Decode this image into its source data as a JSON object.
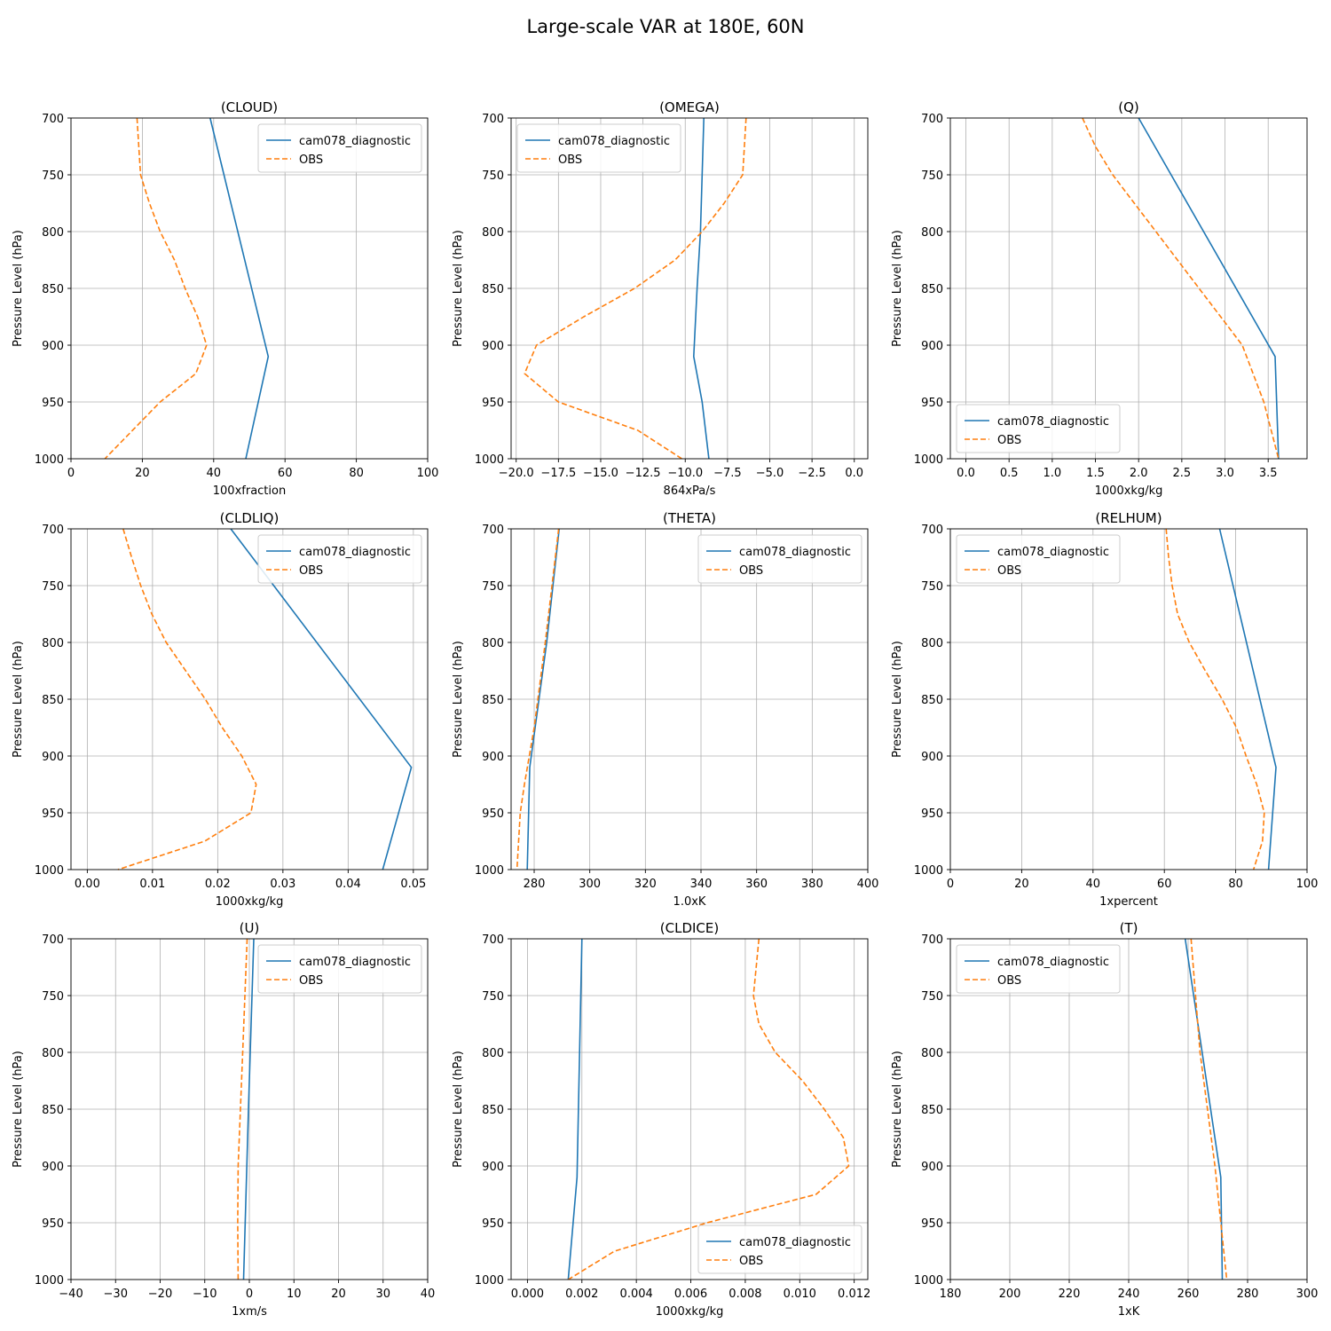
{
  "figure": {
    "title": "Large-scale VAR at 180E, 60N",
    "ylabel": "Pressure Level (hPa)",
    "legend_labels": [
      "cam078_diagnostic",
      "OBS"
    ],
    "series_colors": {
      "cam078_diagnostic": "#1f77b4",
      "OBS": "#ff7f0e"
    }
  },
  "chart_data": [
    {
      "type": "line",
      "title": "(CLOUD)",
      "xlabel": "100xfraction",
      "ylabel": "Pressure Level (hPa)",
      "xlim": [
        0,
        100
      ],
      "ylim": [
        1000,
        700
      ],
      "grid": true,
      "legend": "top-right",
      "xticks": [
        0,
        20,
        40,
        60,
        80,
        100
      ],
      "xtick_labels": [
        "0",
        "20",
        "40",
        "60",
        "80",
        "100"
      ],
      "yticks": [
        700,
        750,
        800,
        850,
        900,
        950,
        1000
      ],
      "ytick_labels": [
        "700",
        "750",
        "800",
        "850",
        "900",
        "950",
        "1000"
      ],
      "series": [
        {
          "name": "cam078_diagnostic",
          "style": "solid",
          "x": [
            39,
            55.3,
            49
          ],
          "y": [
            700,
            910,
            1000
          ]
        },
        {
          "name": "OBS",
          "style": "dashed",
          "x": [
            18.5,
            19,
            19.5,
            22,
            25,
            29,
            32,
            35.5,
            38,
            35,
            25,
            9.5
          ],
          "y": [
            700,
            725,
            750,
            775,
            800,
            825,
            850,
            875,
            900,
            925,
            950,
            1000
          ]
        }
      ]
    },
    {
      "type": "line",
      "title": "(OMEGA)",
      "xlabel": "864xPa/s",
      "ylabel": "Pressure Level (hPa)",
      "xlim": [
        -20.3,
        0.8
      ],
      "ylim": [
        1000,
        700
      ],
      "grid": true,
      "legend": "top-left",
      "xticks": [
        -20,
        -17.5,
        -15,
        -12.5,
        -10,
        -7.5,
        -5,
        -2.5,
        0
      ],
      "xtick_labels": [
        "−20.0",
        "−17.5",
        "−15.0",
        "−12.5",
        "−10.0",
        "−7.5",
        "−5.0",
        "−2.5",
        "0.0"
      ],
      "yticks": [
        700,
        750,
        800,
        850,
        900,
        950,
        1000
      ],
      "ytick_labels": [
        "700",
        "750",
        "800",
        "850",
        "900",
        "950",
        "1000"
      ],
      "series": [
        {
          "name": "cam078_diagnostic",
          "style": "solid",
          "x": [
            -8.9,
            -9.1,
            -9.3,
            -9.5,
            -9.0,
            -8.6
          ],
          "y": [
            700,
            800,
            850,
            910,
            950,
            1000
          ]
        },
        {
          "name": "OBS",
          "style": "dashed",
          "x": [
            -6.4,
            -6.5,
            -6.6,
            -7.7,
            -9.0,
            -10.6,
            -13.0,
            -16.0,
            -18.8,
            -19.5,
            -17.5,
            -12.8,
            -10.2
          ],
          "y": [
            700,
            725,
            750,
            775,
            800,
            825,
            850,
            875,
            900,
            925,
            950,
            975,
            1000
          ]
        }
      ]
    },
    {
      "type": "line",
      "title": "(Q)",
      "xlabel": "1000xkg/kg",
      "ylabel": "Pressure Level (hPa)",
      "xlim": [
        -0.18,
        3.95
      ],
      "ylim": [
        1000,
        700
      ],
      "grid": true,
      "legend": "bottom-left",
      "xticks": [
        0,
        0.5,
        1,
        1.5,
        2,
        2.5,
        3,
        3.5
      ],
      "xtick_labels": [
        "0.0",
        "0.5",
        "1.0",
        "1.5",
        "2.0",
        "2.5",
        "3.0",
        "3.5"
      ],
      "yticks": [
        700,
        750,
        800,
        850,
        900,
        950,
        1000
      ],
      "ytick_labels": [
        "700",
        "750",
        "800",
        "850",
        "900",
        "950",
        "1000"
      ],
      "series": [
        {
          "name": "cam078_diagnostic",
          "style": "solid",
          "x": [
            2.0,
            3.58,
            3.62
          ],
          "y": [
            700,
            910,
            1000
          ]
        },
        {
          "name": "OBS",
          "style": "dashed",
          "x": [
            1.35,
            1.5,
            1.7,
            1.95,
            2.2,
            2.45,
            2.7,
            2.95,
            3.2,
            3.45,
            3.62
          ],
          "y": [
            700,
            725,
            750,
            775,
            800,
            825,
            850,
            875,
            900,
            950,
            1000
          ]
        }
      ]
    },
    {
      "type": "line",
      "title": "(CLDLIQ)",
      "xlabel": "1000xkg/kg",
      "ylabel": "Pressure Level (hPa)",
      "xlim": [
        -0.0025,
        0.0522
      ],
      "ylim": [
        1000,
        700
      ],
      "grid": true,
      "legend": "top-right",
      "xticks": [
        0,
        0.01,
        0.02,
        0.03,
        0.04,
        0.05
      ],
      "xtick_labels": [
        "0.00",
        "0.01",
        "0.02",
        "0.03",
        "0.04",
        "0.05"
      ],
      "yticks": [
        700,
        750,
        800,
        850,
        900,
        950,
        1000
      ],
      "ytick_labels": [
        "700",
        "750",
        "800",
        "850",
        "900",
        "950",
        "1000"
      ],
      "series": [
        {
          "name": "cam078_diagnostic",
          "style": "solid",
          "x": [
            0.022,
            0.0497,
            0.0453
          ],
          "y": [
            700,
            910,
            1000
          ]
        },
        {
          "name": "OBS",
          "style": "dashed",
          "x": [
            0.0055,
            0.0068,
            0.0082,
            0.0099,
            0.0121,
            0.0151,
            0.0181,
            0.0207,
            0.0237,
            0.0259,
            0.0251,
            0.018,
            0.0047
          ],
          "y": [
            700,
            725,
            750,
            775,
            800,
            825,
            850,
            875,
            900,
            925,
            950,
            975,
            1000
          ]
        }
      ]
    },
    {
      "type": "line",
      "title": "(THETA)",
      "xlabel": "1.0xK",
      "ylabel": "Pressure Level (hPa)",
      "xlim": [
        271.7,
        400
      ],
      "ylim": [
        1000,
        700
      ],
      "grid": true,
      "legend": "top-right",
      "xticks": [
        280,
        300,
        320,
        340,
        360,
        380,
        400
      ],
      "xtick_labels": [
        "280",
        "300",
        "320",
        "340",
        "360",
        "380",
        "400"
      ],
      "yticks": [
        700,
        750,
        800,
        850,
        900,
        950,
        1000
      ],
      "ytick_labels": [
        "700",
        "750",
        "800",
        "850",
        "900",
        "950",
        "1000"
      ],
      "series": [
        {
          "name": "cam078_diagnostic",
          "style": "solid",
          "x": [
            289,
            284.5,
            278.4,
            277.5
          ],
          "y": [
            700,
            800,
            910,
            1000
          ]
        },
        {
          "name": "OBS",
          "style": "dashed",
          "x": [
            288.8,
            284,
            280,
            276.5,
            275,
            273.8
          ],
          "y": [
            700,
            800,
            875,
            925,
            950,
            1000
          ]
        }
      ]
    },
    {
      "type": "line",
      "title": "(RELHUM)",
      "xlabel": "1xpercent",
      "ylabel": "Pressure Level (hPa)",
      "xlim": [
        0,
        100
      ],
      "ylim": [
        1000,
        700
      ],
      "grid": true,
      "legend": "top-left",
      "xticks": [
        0,
        20,
        40,
        60,
        80,
        100
      ],
      "xtick_labels": [
        "0",
        "20",
        "40",
        "60",
        "80",
        "100"
      ],
      "yticks": [
        700,
        750,
        800,
        850,
        900,
        950,
        1000
      ],
      "ytick_labels": [
        "700",
        "750",
        "800",
        "850",
        "900",
        "950",
        "1000"
      ],
      "series": [
        {
          "name": "cam078_diagnostic",
          "style": "solid",
          "x": [
            75.5,
            91.3,
            89.2
          ],
          "y": [
            700,
            910,
            1000
          ]
        },
        {
          "name": "OBS",
          "style": "dashed",
          "x": [
            60.5,
            61.2,
            62.2,
            63.7,
            67,
            71.5,
            76.2,
            80.2,
            82.9,
            85.9,
            88,
            87.5,
            85
          ],
          "y": [
            700,
            725,
            750,
            775,
            800,
            825,
            850,
            875,
            900,
            925,
            950,
            975,
            1000
          ]
        }
      ]
    },
    {
      "type": "line",
      "title": "(U)",
      "xlabel": "1xm/s",
      "ylabel": "Pressure Level (hPa)",
      "xlim": [
        -40,
        40
      ],
      "ylim": [
        1000,
        700
      ],
      "grid": true,
      "legend": "top-right",
      "xticks": [
        -40,
        -30,
        -20,
        -10,
        0,
        10,
        20,
        30,
        40
      ],
      "xtick_labels": [
        "−40",
        "−30",
        "−20",
        "−10",
        "0",
        "10",
        "20",
        "30",
        "40"
      ],
      "yticks": [
        700,
        750,
        800,
        850,
        900,
        950,
        1000
      ],
      "ytick_labels": [
        "700",
        "750",
        "800",
        "850",
        "900",
        "950",
        "1000"
      ],
      "series": [
        {
          "name": "cam078_diagnostic",
          "style": "solid",
          "x": [
            1.0,
            -0.2,
            -1.3
          ],
          "y": [
            700,
            850,
            1000
          ]
        },
        {
          "name": "OBS",
          "style": "dashed",
          "x": [
            -0.5,
            -1.5,
            -2.5,
            -2.6,
            -2.5
          ],
          "y": [
            700,
            800,
            900,
            950,
            1000
          ]
        }
      ]
    },
    {
      "type": "line",
      "title": "(CLDICE)",
      "xlabel": "1000xkg/kg",
      "ylabel": "Pressure Level (hPa)",
      "xlim": [
        -0.0006,
        0.0125
      ],
      "ylim": [
        1000,
        700
      ],
      "grid": true,
      "legend": "bottom-right",
      "xticks": [
        0,
        0.002,
        0.004,
        0.006,
        0.008,
        0.01,
        0.012
      ],
      "xtick_labels": [
        "0.000",
        "0.002",
        "0.004",
        "0.006",
        "0.008",
        "0.010",
        "0.012"
      ],
      "yticks": [
        700,
        750,
        800,
        850,
        900,
        950,
        1000
      ],
      "ytick_labels": [
        "700",
        "750",
        "800",
        "850",
        "900",
        "950",
        "1000"
      ],
      "series": [
        {
          "name": "cam078_diagnostic",
          "style": "solid",
          "x": [
            0.002,
            0.00182,
            0.0015
          ],
          "y": [
            700,
            910,
            1000
          ]
        },
        {
          "name": "OBS",
          "style": "dashed",
          "x": [
            0.0085,
            0.0084,
            0.0083,
            0.0085,
            0.0091,
            0.0101,
            0.0109,
            0.0116,
            0.0118,
            0.0106,
            0.0066,
            0.0032,
            0.0015
          ],
          "y": [
            700,
            725,
            750,
            775,
            800,
            825,
            850,
            875,
            900,
            925,
            950,
            975,
            1000
          ]
        }
      ]
    },
    {
      "type": "line",
      "title": "(T)",
      "xlabel": "1xK",
      "ylabel": "Pressure Level (hPa)",
      "xlim": [
        180,
        300
      ],
      "ylim": [
        1000,
        700
      ],
      "grid": true,
      "legend": "top-left",
      "xticks": [
        180,
        200,
        220,
        240,
        260,
        280,
        300
      ],
      "xtick_labels": [
        "180",
        "200",
        "220",
        "240",
        "260",
        "280",
        "300"
      ],
      "yticks": [
        700,
        750,
        800,
        850,
        900,
        950,
        1000
      ],
      "ytick_labels": [
        "700",
        "750",
        "800",
        "850",
        "900",
        "950",
        "1000"
      ],
      "series": [
        {
          "name": "cam078_diagnostic",
          "style": "solid",
          "x": [
            259,
            271,
            271.5
          ],
          "y": [
            700,
            910,
            1000
          ]
        },
        {
          "name": "OBS",
          "style": "dashed",
          "x": [
            261,
            264,
            269,
            271,
            273
          ],
          "y": [
            700,
            800,
            900,
            950,
            1000
          ]
        }
      ]
    }
  ]
}
